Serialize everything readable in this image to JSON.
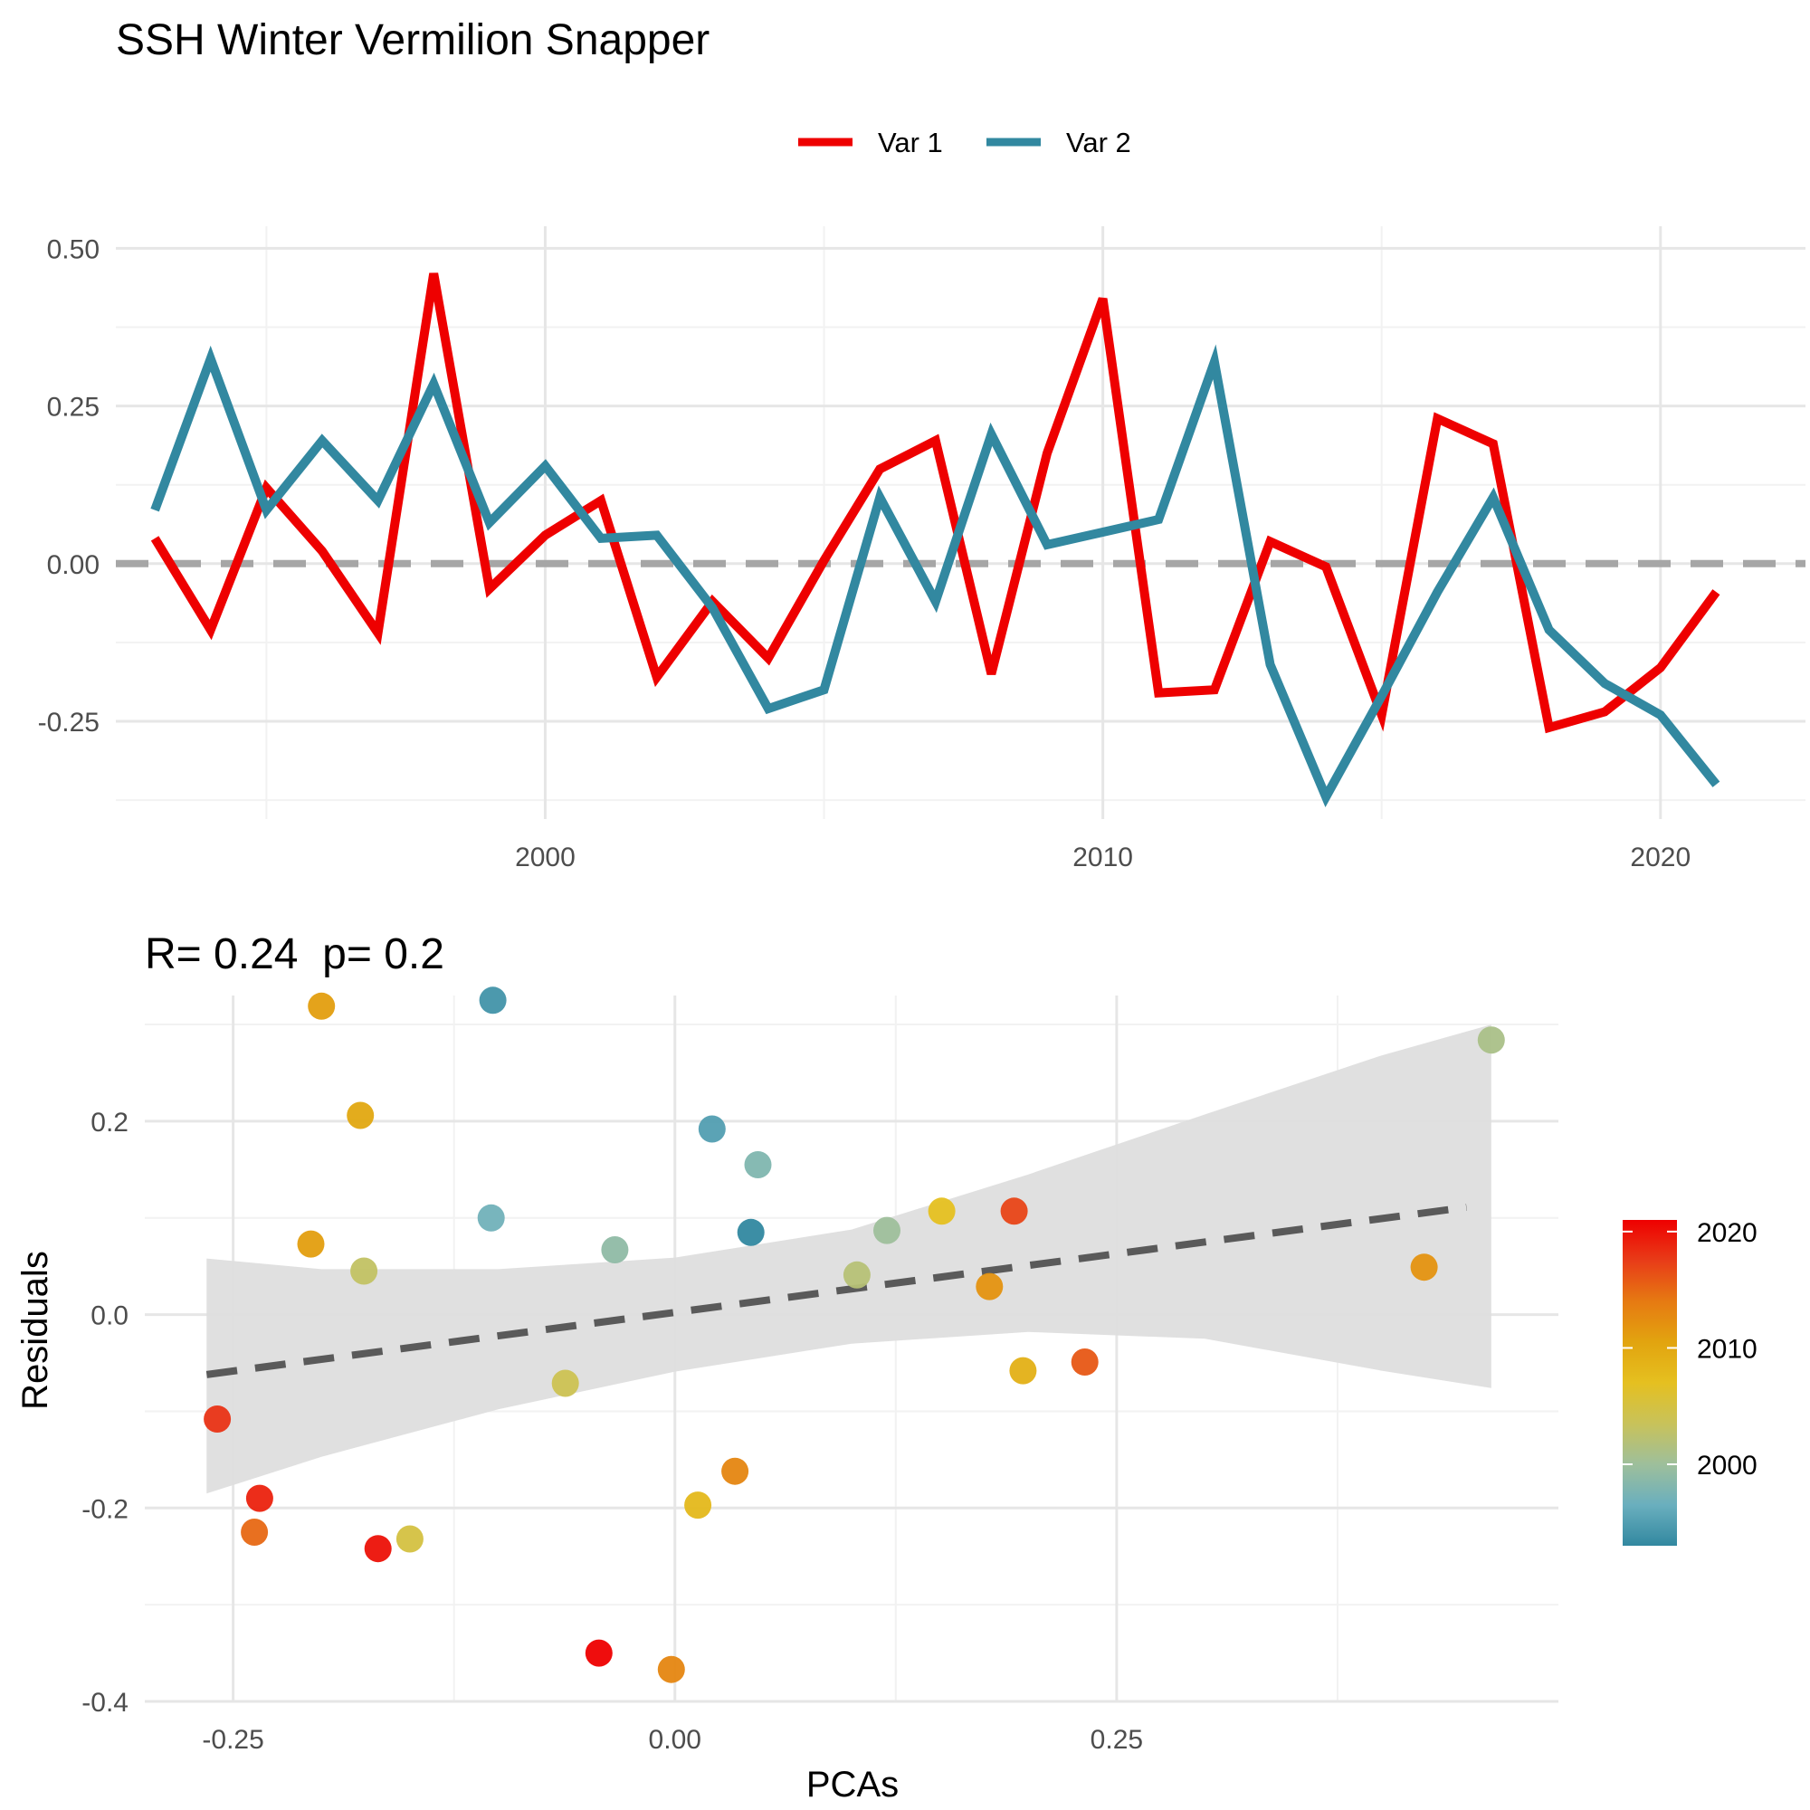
{
  "title": "SSH Winter Vermilion Snapper",
  "colors": {
    "var1": "#EE0000",
    "var2": "#3288A0",
    "zero_line": "#A6A6A6",
    "grid_major": "#E6E6E6",
    "grid_minor": "#F2F2F2",
    "ribbon": "#DEDEDE",
    "fit_line": "#5A5A5A",
    "text": "#4D4D4D"
  },
  "chart_data": [
    {
      "type": "line",
      "title": "SSH Winter Vermilion Snapper",
      "legend_position": "top",
      "xlim": [
        1992.3,
        2022.6
      ],
      "ylim": [
        -0.405,
        0.535
      ],
      "x_ticks": [
        2000,
        2010,
        2020
      ],
      "x_tick_labels": [
        "2000",
        "2010",
        "2020"
      ],
      "x_minor_ticks": [
        1995,
        2005,
        2015
      ],
      "y_ticks": [
        -0.25,
        0,
        0.25,
        0.5
      ],
      "y_tick_labels": [
        "-0.25",
        "0.00",
        "0.25",
        "0.50"
      ],
      "y_minor_ticks": [
        -0.375,
        -0.125,
        0.125,
        0.375
      ],
      "hline": 0,
      "x": [
        1993,
        1994,
        1995,
        1996,
        1997,
        1998,
        1999,
        2000,
        2001,
        2002,
        2003,
        2004,
        2005,
        2006,
        2007,
        2008,
        2009,
        2010,
        2011,
        2012,
        2013,
        2014,
        2015,
        2016,
        2017,
        2018,
        2019,
        2020,
        2021
      ],
      "series": [
        {
          "name": "Var 1",
          "color": "#EE0000",
          "values": [
            0.04,
            -0.105,
            0.12,
            0.02,
            -0.11,
            0.46,
            -0.04,
            0.045,
            0.1,
            -0.18,
            -0.06,
            -0.15,
            0.005,
            0.15,
            0.195,
            -0.175,
            0.175,
            0.42,
            -0.205,
            -0.2,
            0.035,
            -0.005,
            -0.24,
            0.23,
            0.19,
            -0.26,
            -0.235,
            -0.165,
            -0.045
          ]
        },
        {
          "name": "Var 2",
          "color": "#3288A0",
          "values": [
            0.085,
            0.325,
            0.085,
            0.195,
            0.1,
            0.285,
            0.065,
            0.155,
            0.04,
            0.045,
            -0.07,
            -0.23,
            -0.2,
            0.105,
            -0.06,
            0.205,
            0.03,
            0.05,
            0.07,
            0.32,
            -0.16,
            -0.37,
            -0.21,
            -0.045,
            0.105,
            -0.105,
            -0.19,
            -0.24,
            -0.35
          ]
        }
      ]
    },
    {
      "type": "scatter",
      "title": "R= 0.24  p= 0.2",
      "xlabel": "PCAs",
      "ylabel": "Residuals",
      "xlim": [
        -0.3,
        0.5
      ],
      "ylim": [
        -0.4,
        0.33
      ],
      "x_ticks": [
        -0.25,
        0,
        0.25
      ],
      "x_tick_labels": [
        "-0.25",
        "0.00",
        "0.25"
      ],
      "x_minor_ticks": [
        -0.125,
        0.125,
        0.375
      ],
      "y_ticks": [
        -0.4,
        -0.2,
        0,
        0.2
      ],
      "y_tick_labels": [
        "-0.4",
        "-0.2",
        "0.0",
        "0.2"
      ],
      "y_minor_ticks": [
        -0.3,
        -0.1,
        0.1,
        0.3
      ],
      "fit": {
        "x0": -0.265,
        "y0": -0.062,
        "x1": 0.448,
        "y1": 0.111
      },
      "ribbon": {
        "x": [
          -0.265,
          -0.2,
          -0.1,
          0,
          0.1,
          0.2,
          0.3,
          0.4,
          0.462
        ],
        "upper": [
          0.058,
          0.047,
          0.047,
          0.059,
          0.088,
          0.145,
          0.207,
          0.268,
          0.3
        ],
        "lower": [
          -0.185,
          -0.147,
          -0.098,
          -0.059,
          -0.03,
          -0.018,
          -0.025,
          -0.058,
          -0.076
        ]
      },
      "color_scale": {
        "name": "",
        "min": 1993,
        "max": 2021,
        "ticks": [
          2000,
          2010,
          2020
        ],
        "tick_labels": [
          "2000",
          "2010",
          "2020"
        ],
        "stops": [
          "#3288A0",
          "#6AAFBE",
          "#9EBF9B",
          "#C8C25A",
          "#E5C020",
          "#E2A40F",
          "#E67A12",
          "#E83C18",
          "#EE0000"
        ]
      },
      "points": [
        {
          "x": -0.259,
          "y": -0.108,
          "year": 2018
        },
        {
          "x": -0.235,
          "y": -0.19,
          "year": 2019
        },
        {
          "x": -0.238,
          "y": -0.225,
          "year": 2015
        },
        {
          "x": -0.206,
          "y": 0.073,
          "year": 2011
        },
        {
          "x": -0.2,
          "y": 0.319,
          "year": 2011
        },
        {
          "x": -0.178,
          "y": 0.206,
          "year": 2010
        },
        {
          "x": -0.176,
          "y": 0.045,
          "year": 2003
        },
        {
          "x": -0.168,
          "y": -0.242,
          "year": 2020
        },
        {
          "x": -0.15,
          "y": -0.232,
          "year": 2005
        },
        {
          "x": -0.104,
          "y": 0.1,
          "year": 1997
        },
        {
          "x": -0.103,
          "y": 0.325,
          "year": 1994
        },
        {
          "x": -0.062,
          "y": -0.071,
          "year": 2004
        },
        {
          "x": -0.034,
          "y": 0.067,
          "year": 1999
        },
        {
          "x": -0.043,
          "y": -0.35,
          "year": 2021
        },
        {
          "x": -0.002,
          "y": -0.367,
          "year": 2013
        },
        {
          "x": 0.013,
          "y": -0.197,
          "year": 2008
        },
        {
          "x": 0.021,
          "y": 0.192,
          "year": 1995
        },
        {
          "x": 0.034,
          "y": -0.162,
          "year": 2013
        },
        {
          "x": 0.043,
          "y": 0.085,
          "year": 1993
        },
        {
          "x": 0.047,
          "y": 0.155,
          "year": 1998
        },
        {
          "x": 0.103,
          "y": 0.041,
          "year": 2002
        },
        {
          "x": 0.12,
          "y": 0.087,
          "year": 2000
        },
        {
          "x": 0.151,
          "y": 0.107,
          "year": 2007
        },
        {
          "x": 0.178,
          "y": 0.029,
          "year": 2012
        },
        {
          "x": 0.192,
          "y": 0.107,
          "year": 2017
        },
        {
          "x": 0.197,
          "y": -0.058,
          "year": 2009
        },
        {
          "x": 0.232,
          "y": -0.049,
          "year": 2016
        },
        {
          "x": 0.424,
          "y": 0.049,
          "year": 2012
        },
        {
          "x": 0.462,
          "y": 0.284,
          "year": 2001
        }
      ]
    }
  ]
}
